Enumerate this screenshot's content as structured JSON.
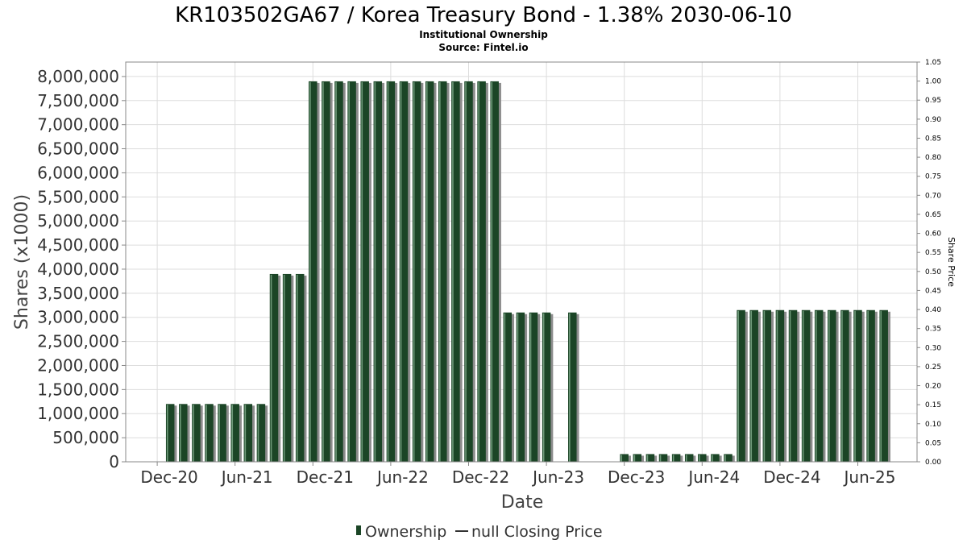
{
  "title": "KR103502GA67 / Korea Treasury Bond - 1.38% 2030-06-10",
  "subtitle_line1": "Institutional Ownership",
  "subtitle_line2": "Source: Fintel.io",
  "colors": {
    "bar_fill": "#1b4526",
    "bar_shadow": "#8c8c8c",
    "grid": "#dddddd",
    "plot_border": "#888888"
  },
  "chart_data": {
    "type": "bar",
    "title": "KR103502GA67 / Korea Treasury Bond - 1.38% 2030-06-10",
    "xlabel": "Date",
    "ylabel": "Shares (x1000)",
    "y2label": "Share Price",
    "ylim": [
      0,
      8300000
    ],
    "y2lim": [
      0,
      1.05
    ],
    "grid": true,
    "legend_placement": "bottom-center",
    "yticks": [
      "0",
      "500,000",
      "1,000,000",
      "1,500,000",
      "2,000,000",
      "2,500,000",
      "3,000,000",
      "3,500,000",
      "4,000,000",
      "4,500,000",
      "5,000,000",
      "5,500,000",
      "6,000,000",
      "6,500,000",
      "7,000,000",
      "7,500,000",
      "8,000,000"
    ],
    "y2ticks": [
      "0.00",
      "0.05",
      "0.10",
      "0.15",
      "0.20",
      "0.25",
      "0.30",
      "0.35",
      "0.40",
      "0.45",
      "0.50",
      "0.55",
      "0.60",
      "0.65",
      "0.70",
      "0.75",
      "0.80",
      "0.85",
      "0.90",
      "0.95",
      "1.00",
      "1.05"
    ],
    "xticks": [
      "Dec-20",
      "Jun-21",
      "Dec-21",
      "Jun-22",
      "Dec-22",
      "Jun-23",
      "Dec-23",
      "Jun-24",
      "Dec-24",
      "Jun-25"
    ],
    "x_start": "2020-11",
    "series": [
      {
        "name": "Ownership",
        "monthly_values": [
          0,
          0,
          1200000,
          1200000,
          1200000,
          1200000,
          1200000,
          1200000,
          1200000,
          1200000,
          3900000,
          3900000,
          3900000,
          7900000,
          7900000,
          7900000,
          7900000,
          7900000,
          7900000,
          7900000,
          7900000,
          7900000,
          7900000,
          7900000,
          7900000,
          7900000,
          7900000,
          7900000,
          3100000,
          3100000,
          3100000,
          3100000,
          0,
          3100000,
          0,
          0,
          0,
          160000,
          160000,
          160000,
          160000,
          160000,
          160000,
          160000,
          160000,
          160000,
          3150000,
          3150000,
          3150000,
          3150000,
          3150000,
          3150000,
          3150000,
          3150000,
          3150000,
          3150000,
          3150000,
          3150000
        ]
      },
      {
        "name": "null Closing Price",
        "values": []
      }
    ]
  },
  "legend": {
    "ownership_label": "Ownership",
    "price_label": "null Closing Price"
  }
}
